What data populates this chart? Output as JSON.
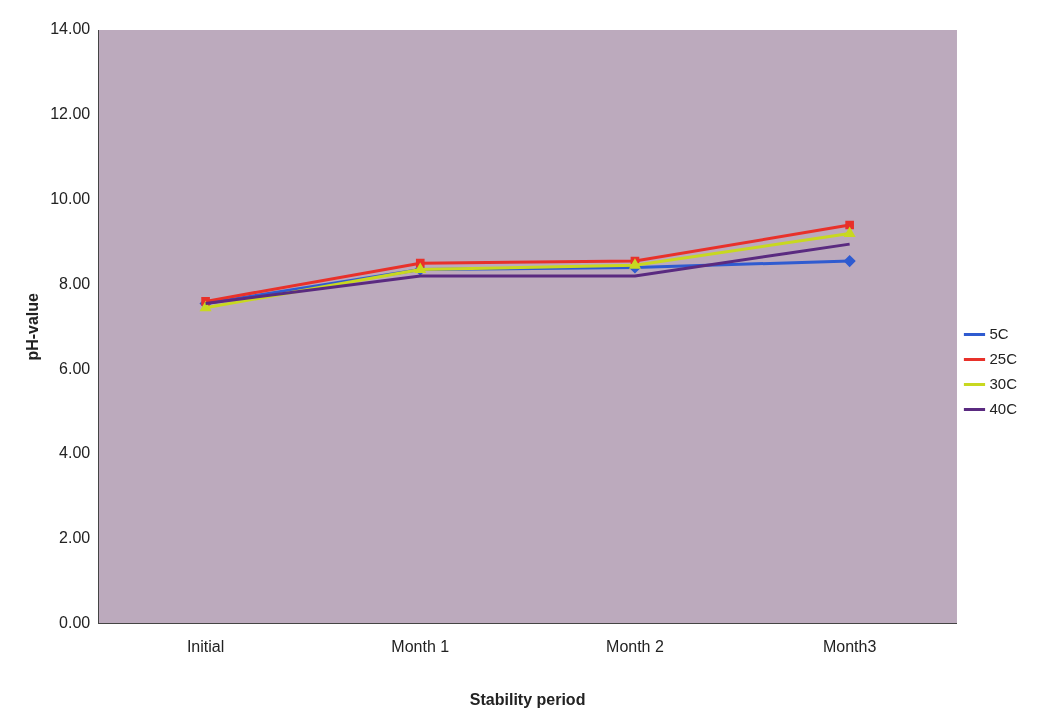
{
  "chart_data": {
    "type": "line",
    "xlabel": "Stability period",
    "ylabel": "pH-value",
    "categories": [
      "Initial",
      "Month 1",
      "Month 2",
      "Month3"
    ],
    "series": [
      {
        "name": "5C",
        "color": "#2f5bd0",
        "marker": "diamond",
        "values": [
          7.55,
          8.35,
          8.4,
          8.55
        ]
      },
      {
        "name": "25C",
        "color": "#e8312a",
        "marker": "square",
        "values": [
          7.6,
          8.5,
          8.55,
          9.4
        ]
      },
      {
        "name": "30C",
        "color": "#c8d820",
        "marker": "triangle",
        "values": [
          7.45,
          8.35,
          8.45,
          9.2
        ]
      },
      {
        "name": "40C",
        "color": "#5a2a80",
        "marker": "none",
        "values": [
          7.55,
          8.2,
          8.2,
          8.95
        ]
      }
    ],
    "ylim": [
      0,
      14
    ],
    "yticks": [
      {
        "value": 0,
        "label": "0.00"
      },
      {
        "value": 2,
        "label": "2.00"
      },
      {
        "value": 4,
        "label": "4.00"
      },
      {
        "value": 6,
        "label": "6.00"
      },
      {
        "value": 8,
        "label": "8.00"
      },
      {
        "value": 10,
        "label": "10.00"
      },
      {
        "value": 12,
        "label": "12.00"
      },
      {
        "value": 14,
        "label": "14.00"
      }
    ],
    "grid": false,
    "legend": "right"
  }
}
